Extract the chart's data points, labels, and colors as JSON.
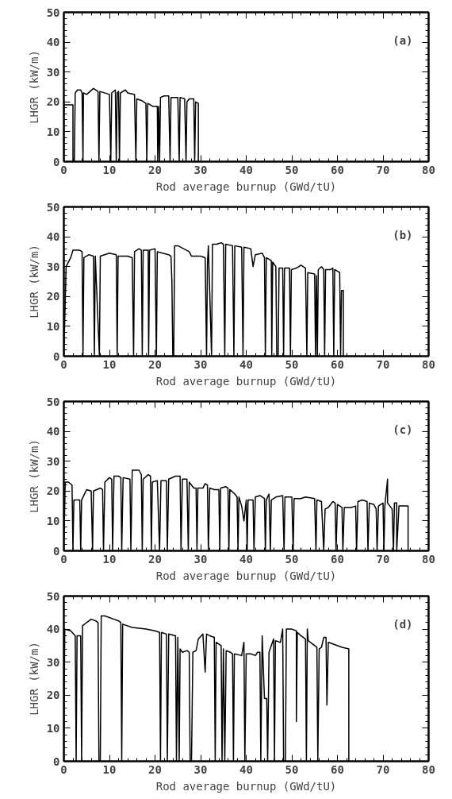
{
  "chart_data": [
    {
      "type": "line",
      "xlabel": "Rod average burnup (GWd/tU)",
      "ylabel": "LHGR (kW/m)",
      "annotations": [
        "(a)"
      ],
      "xlim": [
        0,
        80
      ],
      "ylim": [
        0,
        50
      ],
      "xticks": [
        0,
        10,
        20,
        30,
        40,
        50,
        60,
        70,
        80
      ],
      "yticks": [
        0,
        10,
        20,
        30,
        40,
        50
      ],
      "line_style": "solid",
      "series": [
        {
          "color": "#000000",
          "x": [
            0,
            0,
            2,
            2,
            2.3,
            2.5,
            3,
            3.7,
            4,
            4.2,
            4.3,
            5,
            6.5,
            7.5,
            7.7,
            7.9,
            10,
            10.3,
            10.5,
            11.3,
            11.5,
            11.7,
            12,
            12.2,
            12.4,
            13.5,
            14,
            15.5,
            15.8,
            16,
            17,
            18,
            18.2,
            18.4,
            19.5,
            20.5,
            20.6,
            20.8,
            21,
            21.2,
            22,
            23,
            23.3,
            23.5,
            25,
            25.3,
            25.5,
            26.5,
            26.8,
            27,
            27.5,
            28.5,
            28.7,
            28.9,
            29.5,
            29.5
          ],
          "values": [
            0,
            19,
            19,
            0,
            0,
            23,
            24,
            24,
            23,
            0,
            23,
            22.5,
            24.5,
            23.5,
            0,
            23.5,
            22.5,
            0,
            23,
            24,
            0,
            23,
            23.5,
            0,
            23,
            24,
            23,
            22.5,
            0,
            21,
            20.5,
            19.5,
            0,
            19.5,
            18.5,
            18.5,
            0,
            18.5,
            0,
            21.5,
            22,
            22,
            0,
            21.5,
            21.5,
            0,
            21.5,
            21,
            0,
            20,
            21,
            21,
            0,
            20,
            19.5,
            0
          ]
        }
      ]
    },
    {
      "type": "line",
      "xlabel": "Rod average burnup (GWd/tU)",
      "ylabel": "LHGR (kW/m)",
      "annotations": [
        "(b)"
      ],
      "xlim": [
        0,
        80
      ],
      "ylim": [
        0,
        50
      ],
      "xticks": [
        0,
        10,
        20,
        30,
        40,
        50,
        60,
        70,
        80
      ],
      "yticks": [
        0,
        10,
        20,
        30,
        40,
        50
      ],
      "line_style": "solid",
      "series": [
        {
          "color": "#000000",
          "x": [
            0,
            0.5,
            1.5,
            2,
            3.5,
            4,
            4.2,
            4.4,
            5.5,
            6.5,
            6.7,
            6.9,
            7.8,
            8,
            10,
            11.5,
            11.7,
            11.9,
            14,
            15,
            15.3,
            15.5,
            16.5,
            17,
            17.2,
            17.4,
            18.5,
            18.6,
            18.8,
            20,
            20.3,
            20.5,
            23,
            23.5,
            23.7,
            23.9,
            24.1,
            24.3,
            25,
            27.5,
            28,
            30,
            31,
            31.3,
            31.5,
            31.7,
            32.4,
            32.6,
            33.5,
            34.5,
            35,
            35.3,
            35.5,
            37,
            37.3,
            37.5,
            39,
            39.3,
            39.5,
            41,
            41.5,
            42,
            43.5,
            44,
            44.2,
            44.4,
            45.5,
            45.6,
            45.8,
            46.5,
            46.7,
            47,
            47.2,
            48,
            48.2,
            48.4,
            49.5,
            49.7,
            49.9,
            51,
            52,
            53,
            53.3,
            53.5,
            55,
            55.2,
            55.4,
            55.6,
            55.8,
            56.5,
            57,
            57.2,
            57.4,
            58.5,
            59,
            59.2,
            59.4,
            60,
            60.5,
            60.7,
            60.9,
            61.3,
            61.3
          ],
          "values": [
            0,
            30,
            33,
            35.5,
            35.5,
            35,
            0,
            33,
            34,
            33.5,
            0,
            33.5,
            0,
            33.5,
            34.5,
            34,
            0,
            33.5,
            33.5,
            33,
            0,
            35,
            36,
            35.5,
            0,
            35.5,
            35.5,
            0,
            35.5,
            36,
            0,
            35,
            34,
            33.5,
            25,
            0,
            0,
            37,
            37,
            35,
            33.5,
            33.5,
            33,
            0,
            31,
            37,
            0,
            37.5,
            37.5,
            38,
            37.5,
            0,
            37.5,
            37,
            0,
            37,
            36.5,
            0,
            36.5,
            36,
            30,
            34,
            34.5,
            33,
            0,
            33,
            32,
            0,
            31.5,
            30,
            0,
            0,
            29.5,
            29.5,
            0,
            29.5,
            29.5,
            0,
            29,
            29.5,
            30.5,
            29.5,
            0,
            28,
            27.5,
            0,
            27,
            0,
            29,
            30,
            29,
            0,
            29,
            29,
            29.5,
            0,
            29,
            28.5,
            28,
            0,
            22,
            22,
            0
          ]
        }
      ]
    },
    {
      "type": "line",
      "xlabel": "Rod average burnup (GWd/tU)",
      "ylabel": "LHGR (kW/m)",
      "annotations": [
        "(c)"
      ],
      "xlim": [
        0,
        80
      ],
      "ylim": [
        0,
        50
      ],
      "xticks": [
        0,
        10,
        20,
        30,
        40,
        50,
        60,
        70,
        80
      ],
      "yticks": [
        0,
        10,
        20,
        30,
        40,
        50
      ],
      "line_style": "solid",
      "series": [
        {
          "color": "#000000",
          "x": [
            0,
            0.3,
            1,
            1.8,
            2,
            2.2,
            3.5,
            3.7,
            3.9,
            5,
            6,
            6.3,
            6.5,
            8,
            8.5,
            8.7,
            9,
            10,
            10.5,
            10.7,
            11,
            12,
            12.5,
            12.7,
            13,
            14.5,
            14.7,
            15,
            16.5,
            17,
            17.2,
            17.4,
            18.5,
            19,
            19.2,
            19.4,
            20.5,
            21,
            21.3,
            22.5,
            22.7,
            23,
            24.5,
            25.5,
            25.7,
            26,
            27,
            27.3,
            27.5,
            28.5,
            29,
            29.2,
            29.4,
            30.5,
            31,
            31.5,
            31.7,
            32,
            33,
            34,
            34.2,
            34.4,
            35.5,
            36,
            36.2,
            36.4,
            37.5,
            38,
            38.2,
            38.4,
            39,
            39.5,
            40,
            40.2,
            40.4,
            41.5,
            41.7,
            42,
            43,
            44,
            44.2,
            44.4,
            45,
            45.3,
            45.5,
            46.5,
            48,
            48.3,
            48.5,
            50,
            50.3,
            50.5,
            52,
            53,
            55,
            55.3,
            55.5,
            56.5,
            57,
            57.3,
            58,
            59,
            59.5,
            59.7,
            60,
            61,
            61.2,
            61.5,
            63,
            64,
            64.2,
            64.5,
            65.5,
            66.5,
            66.7,
            67,
            68,
            68.5,
            68.7,
            69,
            70,
            70.2,
            70.4,
            71,
            71,
            72,
            72.3,
            72.5,
            73,
            73,
            73.5,
            75.5,
            75.5
          ],
          "values": [
            0,
            23,
            23,
            22,
            0,
            17,
            17,
            0,
            17,
            20.5,
            20,
            0,
            20,
            21,
            20.5,
            0,
            23,
            24.5,
            24,
            0,
            25,
            25,
            24.5,
            0,
            24.5,
            24,
            0,
            27,
            27,
            25.5,
            0,
            24,
            25.5,
            25,
            0,
            23,
            23.5,
            0,
            23.5,
            23.5,
            0,
            24,
            25,
            25,
            0,
            24,
            24,
            0,
            23,
            21,
            21,
            0,
            21,
            21,
            22.5,
            22,
            0,
            21,
            20.5,
            20.5,
            0,
            21,
            21.5,
            21,
            0,
            20.5,
            19,
            18,
            0,
            18,
            15,
            10,
            17,
            0,
            17,
            17,
            0,
            18,
            18.5,
            17.5,
            0,
            17,
            19,
            0,
            17,
            18,
            18.5,
            0,
            18,
            18,
            0,
            17.5,
            17.5,
            18,
            17.5,
            0,
            17,
            16.5,
            0,
            14,
            14.5,
            16.5,
            16,
            0,
            15.5,
            14.5,
            0,
            14.5,
            14.5,
            15,
            0,
            16.5,
            17,
            16.5,
            0,
            16,
            15.5,
            14,
            0,
            15,
            16,
            0,
            15,
            24,
            16,
            14,
            0,
            16,
            16,
            0,
            15,
            15,
            0
          ]
        }
      ]
    },
    {
      "type": "line",
      "xlabel": "Rod average burnup (GWd/tU)",
      "ylabel": "LHGR (kW/m)",
      "annotations": [
        "(d)"
      ],
      "xlim": [
        0,
        80
      ],
      "ylim": [
        0,
        50
      ],
      "xticks": [
        0,
        10,
        20,
        30,
        40,
        50,
        60,
        70,
        80
      ],
      "yticks": [
        0,
        10,
        20,
        30,
        40,
        50
      ],
      "line_style": "solid",
      "series": [
        {
          "color": "#000000",
          "x": [
            0,
            0.2,
            1.5,
            2.5,
            2.7,
            2.9,
            3.7,
            3.9,
            4.1,
            5,
            6,
            7,
            7.5,
            7.7,
            8,
            8.2,
            9,
            11,
            12,
            12.5,
            12.7,
            12.9,
            15,
            18,
            20,
            21,
            21.2,
            21.4,
            22.5,
            22.7,
            23,
            24.5,
            24.7,
            25,
            25.3,
            25.5,
            26,
            27,
            27.5,
            27.7,
            28,
            28.3,
            29,
            29.5,
            30.5,
            31,
            31.3,
            32,
            33,
            33.2,
            33.4,
            34.5,
            34.7,
            35,
            35.3,
            35.6,
            36.5,
            37,
            37.2,
            37.4,
            39,
            39.5,
            39.7,
            40,
            41,
            42,
            42.5,
            43,
            43.2,
            43.5,
            44,
            44.5,
            44.7,
            45,
            46,
            46.2,
            46.4,
            47.5,
            48,
            48.2,
            48.6,
            48.8,
            50,
            51,
            51,
            51.2,
            52,
            53,
            53.2,
            53.4,
            53.6,
            55,
            55.5,
            55.7,
            56,
            56.5,
            57,
            57.5,
            57.7,
            58,
            59,
            61,
            62.5,
            62.5
          ],
          "values": [
            0,
            40,
            39.5,
            38,
            0,
            38,
            38,
            0,
            41,
            42,
            43,
            42.5,
            42,
            0,
            0,
            44,
            44,
            43,
            42.5,
            42,
            0,
            41.5,
            40.5,
            40,
            39.5,
            39,
            0,
            39,
            38.5,
            0,
            38.5,
            38,
            0,
            37.5,
            0,
            34,
            33,
            33.5,
            33,
            0,
            0,
            33,
            33.5,
            37,
            38.5,
            27,
            38.5,
            38,
            37.5,
            0,
            36,
            35,
            0,
            34,
            0,
            33.5,
            33,
            32.5,
            0,
            32.5,
            32,
            36,
            0,
            32.5,
            32.5,
            32,
            33,
            33,
            0,
            38,
            19,
            19,
            0,
            33,
            37,
            0,
            36.5,
            36,
            40,
            0,
            0,
            40,
            40,
            39.5,
            12,
            39,
            38,
            37,
            0,
            40,
            36.5,
            35,
            34.5,
            0,
            34,
            34.5,
            37.5,
            37.5,
            17,
            36,
            35.5,
            34.5,
            34,
            0
          ]
        }
      ]
    }
  ]
}
